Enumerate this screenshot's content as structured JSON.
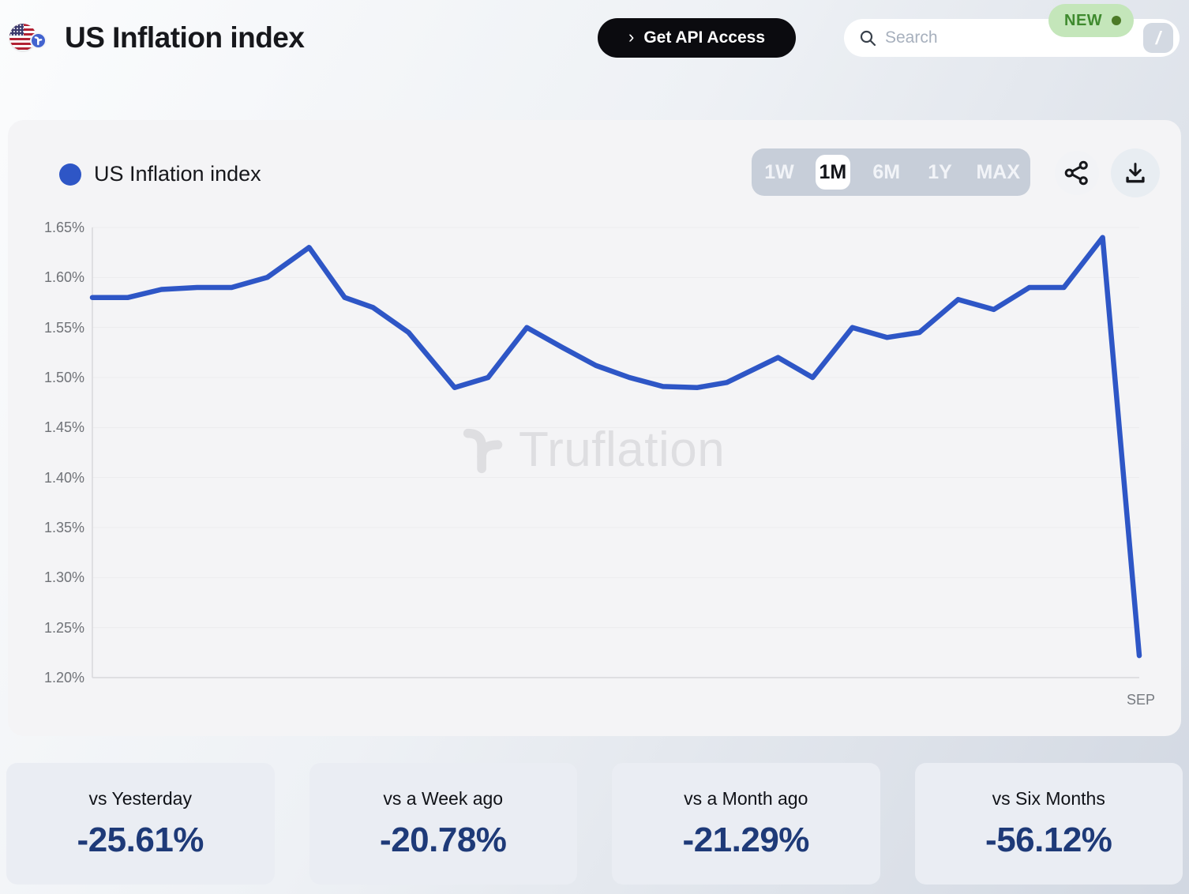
{
  "header": {
    "title": "US Inflation index",
    "api_button": {
      "label": "Get API Access",
      "chevron": "›"
    },
    "search": {
      "placeholder": "Search",
      "shortcut_key": "/",
      "badge_label": "NEW"
    }
  },
  "chart_panel": {
    "legend": {
      "label": "US Inflation index",
      "color": "#2e56c6"
    },
    "range_buttons": [
      "1W",
      "1M",
      "6M",
      "1Y",
      "MAX"
    ],
    "selected_range": "1M",
    "watermark_text": "Truflation",
    "icons": [
      "share-icon",
      "download-icon"
    ]
  },
  "chart_data": {
    "type": "line",
    "title": "US Inflation index",
    "series_name": "US Inflation index",
    "unit": "%",
    "line_color": "#2e56c6",
    "ylim": [
      1.2,
      1.65
    ],
    "y_ticks": [
      "1.65%",
      "1.60%",
      "1.55%",
      "1.50%",
      "1.45%",
      "1.40%",
      "1.35%",
      "1.30%",
      "1.25%",
      "1.20%"
    ],
    "y_tick_values": [
      1.65,
      1.6,
      1.55,
      1.5,
      1.45,
      1.4,
      1.35,
      1.3,
      1.25,
      1.2
    ],
    "x_end_label": "SEP",
    "grid": true,
    "legend_position": "top-left",
    "points": [
      [
        0.0,
        1.58
      ],
      [
        0.034,
        1.58
      ],
      [
        0.066,
        1.588
      ],
      [
        0.1,
        1.59
      ],
      [
        0.133,
        1.59
      ],
      [
        0.167,
        1.6
      ],
      [
        0.207,
        1.63
      ],
      [
        0.241,
        1.58
      ],
      [
        0.268,
        1.57
      ],
      [
        0.302,
        1.545
      ],
      [
        0.346,
        1.49
      ],
      [
        0.378,
        1.5
      ],
      [
        0.415,
        1.55
      ],
      [
        0.449,
        1.53
      ],
      [
        0.481,
        1.512
      ],
      [
        0.513,
        1.5
      ],
      [
        0.545,
        1.491
      ],
      [
        0.578,
        1.49
      ],
      [
        0.606,
        1.495
      ],
      [
        0.655,
        1.52
      ],
      [
        0.688,
        1.5
      ],
      [
        0.726,
        1.55
      ],
      [
        0.759,
        1.54
      ],
      [
        0.79,
        1.545
      ],
      [
        0.827,
        1.578
      ],
      [
        0.861,
        1.568
      ],
      [
        0.895,
        1.59
      ],
      [
        0.928,
        1.59
      ],
      [
        0.965,
        1.64
      ],
      [
        1.0,
        1.222
      ]
    ]
  },
  "stats": [
    {
      "label": "vs Yesterday",
      "value": "-25.61%"
    },
    {
      "label": "vs a Week ago",
      "value": "-20.78%"
    },
    {
      "label": "vs a Month ago",
      "value": "-21.29%"
    },
    {
      "label": "vs Six Months",
      "value": "-56.12%"
    }
  ],
  "colors": {
    "accent_blue": "#2e56c6",
    "button_black": "#0b0b0f",
    "value_navy": "#1e3a78",
    "badge_green_bg": "#c4e6ba",
    "badge_green_text": "#3f8a2e",
    "panel_bg": "#f4f4f6",
    "card_bg": "#eaedf3"
  }
}
